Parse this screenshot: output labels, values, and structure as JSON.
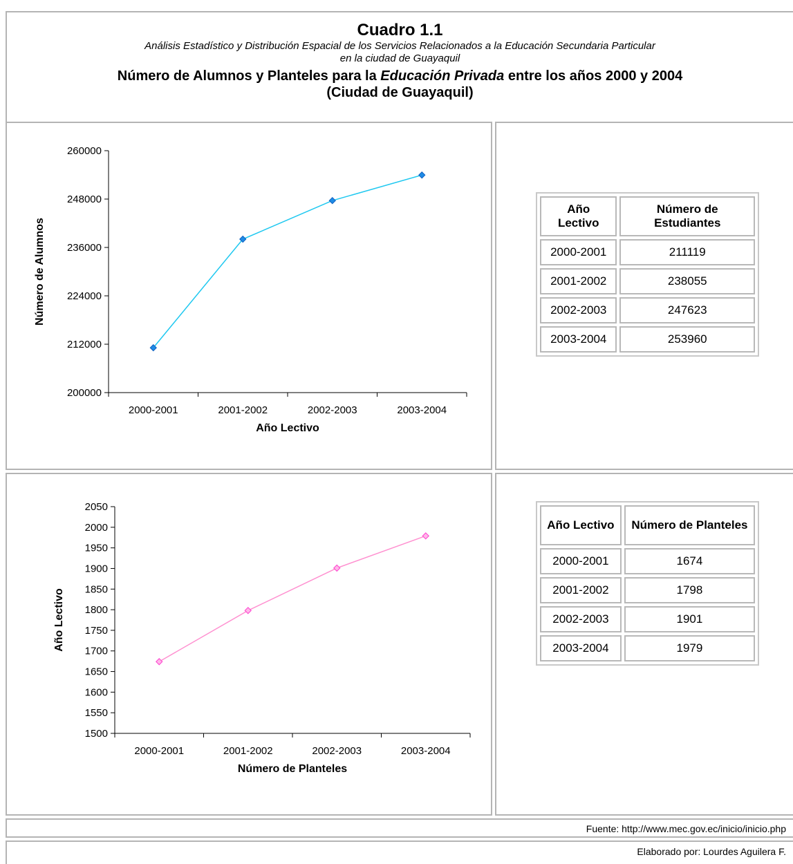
{
  "header": {
    "title": "Cuadro 1.1",
    "subtitle_line1": "Análisis Estadístico y Distribución  Espacial de los  Servicios Relacionados a la Educación Secundaria Particular",
    "subtitle_line2": "en la ciudad de Guayaquil",
    "main_pre": "Número de Alumnos y Planteles para la ",
    "main_em": "Educación Privada",
    "main_post": " entre los años 2000 y 2004",
    "main_line2": "(Ciudad de Guayaquil)"
  },
  "chart_data": [
    {
      "type": "line",
      "categories": [
        "2000-2001",
        "2001-2002",
        "2002-2003",
        "2003-2004"
      ],
      "series": [
        {
          "values": [
            211119,
            238055,
            247623,
            253960
          ]
        }
      ],
      "xlabel": "Año Lectivo",
      "ylabel": "Número de Alumnos",
      "ylim": [
        200000,
        260000
      ],
      "yticks": [
        200000,
        212000,
        224000,
        236000,
        248000,
        260000
      ],
      "color": "#1ec8f0",
      "marker_color": "#1e8ce6"
    },
    {
      "type": "line",
      "categories": [
        "2000-2001",
        "2001-2002",
        "2002-2003",
        "2003-2004"
      ],
      "series": [
        {
          "values": [
            1674,
            1798,
            1901,
            1979
          ]
        }
      ],
      "xlabel": "Número de Planteles",
      "ylabel": "Año Lectivo",
      "ylim": [
        1500,
        2050
      ],
      "yticks": [
        1500,
        1550,
        1600,
        1650,
        1700,
        1750,
        1800,
        1850,
        1900,
        1950,
        2000,
        2050
      ],
      "color": "#ff90d0",
      "marker_color": "#ff40d0"
    }
  ],
  "table1": {
    "headers": [
      "Año Lectivo",
      "Número de Estudiantes"
    ],
    "rows": [
      [
        "2000-2001",
        "211119"
      ],
      [
        "2001-2002",
        "238055"
      ],
      [
        "2002-2003",
        "247623"
      ],
      [
        "2003-2004",
        "253960"
      ]
    ]
  },
  "table2": {
    "headers": [
      "Año Lectivo",
      "Número de Planteles"
    ],
    "rows": [
      [
        "2000-2001",
        "1674"
      ],
      [
        "2001-2002",
        "1798"
      ],
      [
        "2002-2003",
        "1901"
      ],
      [
        "2003-2004",
        "1979"
      ]
    ]
  },
  "footer": {
    "source": "Fuente: http://www.mec.gov.ec/inicio/inicio.php",
    "author": "Elaborado por: Lourdes Aguilera F."
  }
}
